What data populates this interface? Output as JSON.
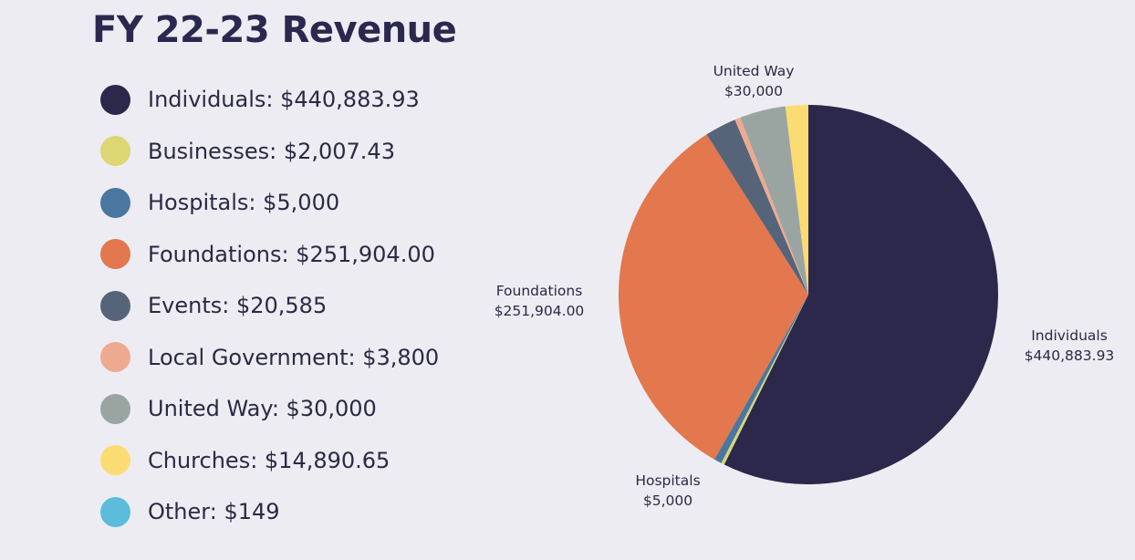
{
  "title": "FY 22-23 Revenue",
  "chart_data": {
    "type": "pie",
    "title": "FY 22-23 Revenue",
    "slices": [
      {
        "name": "Individuals",
        "value": 440883.93,
        "legend_label": "Individuals: $440,883.93",
        "color": "#2b284c"
      },
      {
        "name": "Businesses",
        "value": 2007.43,
        "legend_label": "Businesses: $2,007.43",
        "color": "#dcd673"
      },
      {
        "name": "Hospitals",
        "value": 5000,
        "legend_label": "Hospitals: $5,000",
        "color": "#4a77a0"
      },
      {
        "name": "Foundations",
        "value": 251904.0,
        "legend_label": "Foundations: $251,904.00",
        "color": "#e3774e"
      },
      {
        "name": "Events",
        "value": 20585,
        "legend_label": "Events: $20,585",
        "color": "#566479"
      },
      {
        "name": "Local Government",
        "value": 3800,
        "legend_label": "Local Government: $3,800",
        "color": "#eeaa90"
      },
      {
        "name": "United Way",
        "value": 30000,
        "legend_label": "United Way: $30,000",
        "color": "#9aa5a1"
      },
      {
        "name": "Churches",
        "value": 14890.65,
        "legend_label": "Churches: $14,890.65",
        "color": "#fbdc72"
      },
      {
        "name": "Other",
        "value": 149,
        "legend_label": "Other: $149",
        "color": "#5bbcdc"
      }
    ],
    "callouts": [
      {
        "slice": "United Way",
        "line1": "United Way",
        "line2": "$30,000"
      },
      {
        "slice": "Foundations",
        "line1": "Foundations",
        "line2": "$251,904.00"
      },
      {
        "slice": "Individuals",
        "line1": "Individuals",
        "line2": "$440,883.93"
      },
      {
        "slice": "Hospitals",
        "line1": "Hospitals",
        "line2": "$5,000"
      }
    ],
    "legend_placement": "left"
  }
}
